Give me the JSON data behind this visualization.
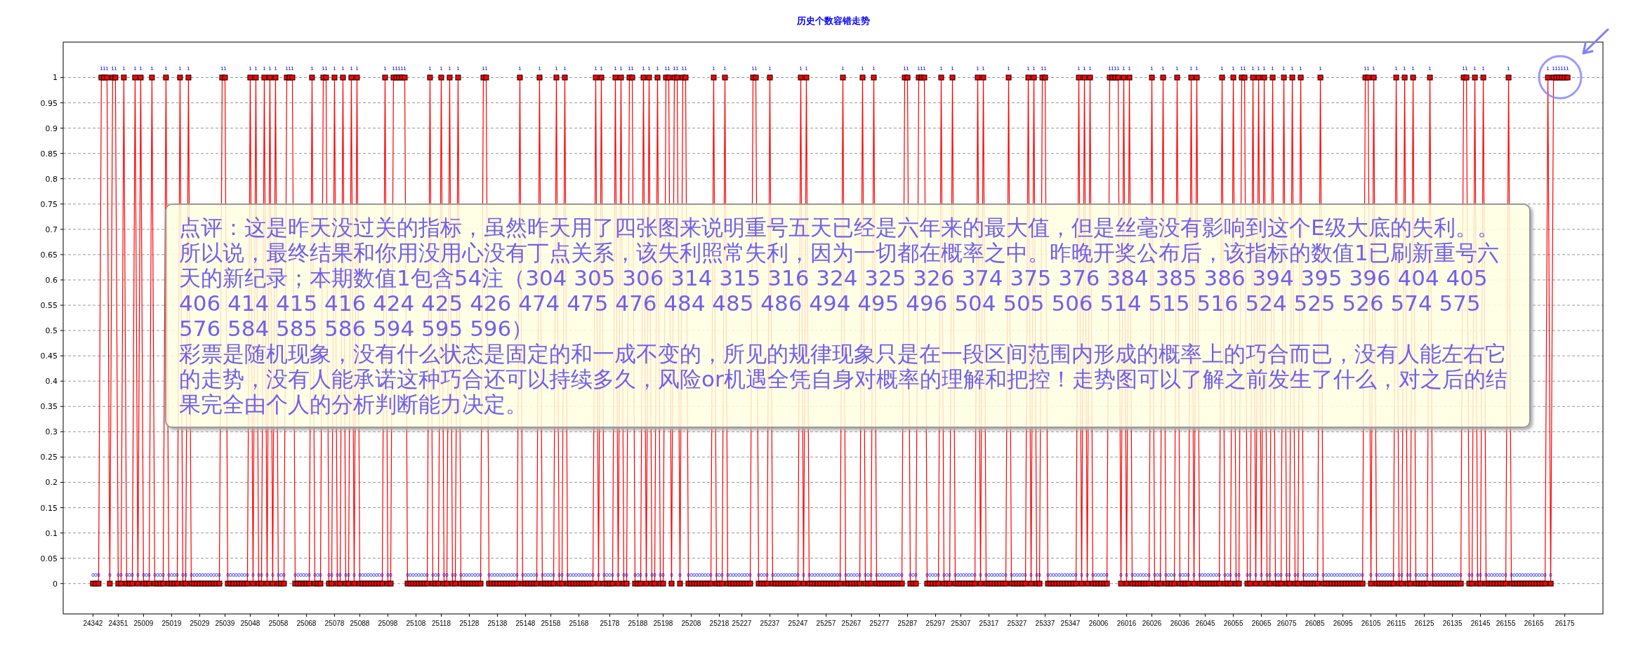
{
  "chart_data": {
    "type": "line",
    "title": "历史个数容错走势",
    "categories": [
      "24342",
      null,
      null,
      null,
      null,
      null,
      null,
      null,
      null,
      "24351",
      null,
      null,
      null,
      null,
      null,
      null,
      null,
      null,
      "25009",
      null,
      null,
      null,
      null,
      null,
      null,
      null,
      null,
      null,
      "25019",
      null,
      null,
      null,
      null,
      null,
      null,
      null,
      null,
      null,
      "25029",
      null,
      null,
      null,
      null,
      null,
      null,
      null,
      null,
      "25039",
      null,
      null,
      null,
      null,
      null,
      null,
      null,
      null,
      "25048",
      null,
      null,
      null,
      null,
      null,
      null,
      null,
      null,
      null,
      "25058",
      null,
      null,
      null,
      null,
      null,
      null,
      null,
      null,
      null,
      "25068",
      null,
      null,
      null,
      null,
      null,
      null,
      null,
      null,
      null,
      "25078",
      null,
      null,
      null,
      null,
      null,
      null,
      null,
      null,
      "25088",
      null,
      null,
      null,
      null,
      null,
      null,
      null,
      null,
      null,
      "25098",
      null,
      null,
      null,
      null,
      null,
      null,
      null,
      null,
      null,
      "25108",
      null,
      null,
      null,
      null,
      null,
      null,
      null,
      null,
      "25118",
      null,
      null,
      null,
      null,
      null,
      null,
      null,
      null,
      null,
      "25128",
      null,
      null,
      null,
      null,
      null,
      null,
      null,
      null,
      null,
      "25138",
      null,
      null,
      null,
      null,
      null,
      null,
      null,
      null,
      null,
      "25148",
      null,
      null,
      null,
      null,
      null,
      null,
      null,
      null,
      "25158",
      null,
      null,
      null,
      null,
      null,
      null,
      null,
      null,
      null,
      "25168",
      null,
      null,
      null,
      null,
      null,
      null,
      null,
      null,
      null,
      null,
      "25178",
      null,
      null,
      null,
      null,
      null,
      null,
      null,
      null,
      null,
      "25188",
      null,
      null,
      null,
      null,
      null,
      null,
      null,
      null,
      "25198",
      null,
      null,
      null,
      null,
      null,
      null,
      null,
      null,
      null,
      "25208",
      null,
      null,
      null,
      null,
      null,
      null,
      null,
      null,
      null,
      "25218",
      null,
      null,
      null,
      null,
      null,
      null,
      null,
      "25227",
      null,
      null,
      null,
      null,
      null,
      null,
      null,
      null,
      null,
      "25237",
      null,
      null,
      null,
      null,
      null,
      null,
      null,
      null,
      null,
      "25247",
      null,
      null,
      null,
      null,
      null,
      null,
      null,
      null,
      null,
      "25257",
      null,
      null,
      null,
      null,
      null,
      null,
      null,
      null,
      "25267",
      null,
      null,
      null,
      null,
      null,
      null,
      null,
      null,
      null,
      "25277",
      null,
      null,
      null,
      null,
      null,
      null,
      null,
      null,
      null,
      "25287",
      null,
      null,
      null,
      null,
      null,
      null,
      null,
      null,
      null,
      "25297",
      null,
      null,
      null,
      null,
      null,
      null,
      null,
      null,
      "25307",
      null,
      null,
      null,
      null,
      null,
      null,
      null,
      null,
      null,
      "25317",
      null,
      null,
      null,
      null,
      null,
      null,
      null,
      null,
      null,
      "25327",
      null,
      null,
      null,
      null,
      null,
      null,
      null,
      null,
      null,
      "25337",
      null,
      null,
      null,
      null,
      null,
      null,
      null,
      null,
      "25347",
      null,
      null,
      null,
      null,
      null,
      null,
      null,
      null,
      null,
      "26006",
      null,
      null,
      null,
      null,
      null,
      null,
      null,
      null,
      null,
      "26016",
      null,
      null,
      null,
      null,
      null,
      null,
      null,
      null,
      "26026",
      null,
      null,
      null,
      null,
      null,
      null,
      null,
      null,
      null,
      "26036",
      null,
      null,
      null,
      null,
      null,
      null,
      null,
      null,
      "26045",
      null,
      null,
      null,
      null,
      null,
      null,
      null,
      null,
      null,
      "26055",
      null,
      null,
      null,
      null,
      null,
      null,
      null,
      null,
      null,
      "26065",
      null,
      null,
      null,
      null,
      null,
      null,
      null,
      null,
      "26075",
      null,
      null,
      null,
      null,
      null,
      null,
      null,
      null,
      null,
      "26085",
      null,
      null,
      null,
      null,
      null,
      null,
      null,
      null,
      null,
      "26095",
      null,
      null,
      null,
      null,
      null,
      null,
      null,
      null,
      null,
      "26105",
      null,
      null,
      null,
      null,
      null,
      null,
      null,
      null,
      "26115",
      null,
      null,
      null,
      null,
      null,
      null,
      null,
      null,
      null,
      "26125",
      null,
      null,
      null,
      null,
      null,
      null,
      null,
      null,
      null,
      "26135",
      null,
      null,
      null,
      null,
      null,
      null,
      null,
      null,
      null,
      "26145",
      null,
      null,
      null,
      null,
      null,
      null,
      null,
      null,
      "26155",
      null,
      null,
      null,
      null,
      null,
      null,
      null,
      null,
      null,
      "26165",
      null,
      null,
      null,
      null,
      null,
      null,
      null,
      null,
      null,
      null,
      "26175",
      null
    ],
    "series": [
      {
        "color": "#ff0000",
        "values": [
          0,
          0,
          0,
          1,
          1,
          1,
          0,
          1,
          1,
          0,
          0,
          1,
          0,
          0,
          0,
          1,
          0,
          1,
          0,
          0,
          0,
          1,
          0,
          0,
          0,
          0,
          1,
          0,
          0,
          0,
          0,
          1,
          0,
          0,
          1,
          0,
          0,
          0,
          0,
          0,
          0,
          0,
          0,
          0,
          0,
          0,
          1,
          1,
          0,
          0,
          0,
          0,
          0,
          0,
          0,
          0,
          1,
          0,
          1,
          0,
          0,
          1,
          0,
          1,
          0,
          1,
          0,
          0,
          0,
          1,
          1,
          1,
          0,
          0,
          0,
          0,
          0,
          0,
          1,
          0,
          0,
          0,
          1,
          1,
          0,
          0,
          1,
          0,
          0,
          1,
          0,
          0,
          1,
          0,
          1,
          0,
          0,
          0,
          0,
          0,
          0,
          0,
          0,
          0,
          1,
          0,
          0,
          1,
          1,
          1,
          1,
          1,
          0,
          0,
          0,
          0,
          0,
          0,
          0,
          0,
          1,
          0,
          0,
          0,
          1,
          0,
          0,
          1,
          0,
          0,
          1,
          0,
          0,
          0,
          0,
          0,
          0,
          0,
          0,
          1,
          1,
          0,
          0,
          0,
          0,
          0,
          0,
          0,
          0,
          0,
          0,
          0,
          1,
          0,
          0,
          0,
          0,
          0,
          0,
          1,
          0,
          0,
          0,
          0,
          0,
          1,
          0,
          0,
          1,
          0,
          0,
          0,
          0,
          0,
          0,
          0,
          0,
          0,
          0,
          1,
          0,
          1,
          0,
          0,
          0,
          0,
          1,
          0,
          1,
          0,
          0,
          1,
          1,
          0,
          0,
          0,
          1,
          0,
          1,
          0,
          0,
          1,
          0,
          0,
          1,
          1,
          0,
          1,
          1,
          0,
          1,
          1,
          0,
          0,
          0,
          0,
          0,
          0,
          0,
          0,
          0,
          1,
          0,
          0,
          0,
          1,
          0,
          0,
          0,
          0,
          0,
          0,
          0,
          0,
          0,
          1,
          1,
          0,
          0,
          0,
          0,
          1,
          0,
          0,
          0,
          0,
          0,
          0,
          0,
          0,
          0,
          0,
          1,
          0,
          1,
          0,
          0,
          0,
          0,
          0,
          0,
          0,
          0,
          0,
          0,
          0,
          0,
          1,
          0,
          0,
          0,
          0,
          0,
          0,
          1,
          0,
          0,
          0,
          1,
          0,
          0,
          0,
          0,
          0,
          0,
          0,
          0,
          0,
          0,
          1,
          1,
          0,
          0,
          0,
          1,
          1,
          1,
          0,
          0,
          0,
          0,
          0,
          1,
          0,
          0,
          0,
          1,
          0,
          0,
          0,
          0,
          0,
          0,
          0,
          0,
          1,
          0,
          1,
          0,
          0,
          0,
          0,
          0,
          0,
          0,
          0,
          1,
          0,
          0,
          0,
          0,
          0,
          0,
          1,
          0,
          1,
          0,
          0,
          1,
          1,
          0,
          0,
          0,
          0,
          0,
          0,
          0,
          0,
          0,
          0,
          0,
          1,
          0,
          1,
          0,
          1,
          0,
          0,
          0,
          0,
          0,
          0,
          1,
          1,
          1,
          1,
          0,
          1,
          0,
          1,
          0,
          0,
          0,
          0,
          0,
          0,
          0,
          1,
          0,
          0,
          0,
          1,
          0,
          0,
          0,
          0,
          1,
          0,
          0,
          0,
          0,
          1,
          0,
          1,
          0,
          0,
          0,
          0,
          0,
          0,
          0,
          0,
          1,
          0,
          0,
          0,
          1,
          0,
          0,
          1,
          1,
          0,
          0,
          1,
          0,
          1,
          0,
          1,
          0,
          0,
          1,
          0,
          0,
          0,
          1,
          0,
          0,
          1,
          0,
          0,
          1,
          0,
          0,
          0,
          0,
          0,
          0,
          1,
          0,
          0,
          0,
          0,
          0,
          0,
          0,
          0,
          0,
          0,
          0,
          0,
          0,
          0,
          0,
          1,
          1,
          0,
          1,
          0,
          0,
          0,
          0,
          0,
          0,
          0,
          1,
          0,
          0,
          1,
          0,
          0,
          1,
          0,
          0,
          0,
          0,
          0,
          1,
          0,
          0,
          0,
          0,
          0,
          0,
          0,
          0,
          0,
          0,
          0,
          1,
          1,
          0,
          0,
          1,
          0,
          0,
          1,
          0,
          0,
          0,
          0,
          0,
          0,
          0,
          0,
          1,
          0,
          0,
          0,
          0,
          0,
          0,
          0,
          0,
          0,
          0,
          0,
          0,
          0,
          1,
          0,
          1,
          1,
          1,
          1,
          1,
          1
        ]
      }
    ],
    "marker": "square",
    "ylim": [
      -0.06,
      1.07
    ],
    "yticks": [
      0,
      0.05,
      0.1,
      0.15,
      0.2,
      0.25,
      0.3,
      0.35,
      0.4,
      0.45,
      0.5,
      0.55,
      0.6,
      0.65,
      0.7,
      0.75,
      0.8,
      0.85,
      0.9,
      0.95,
      1
    ],
    "grid": "y",
    "data_labels": true,
    "annotations": [
      "点评：这是昨天没过关的指标，虽然昨天用了四张图来说明重号五天已经是六年来的最大值，但是丝毫没有影响到这个E级大底的失利。。所以说，最终结果和你用没用心没有丁点关系，该失利照常失利，因为一切都在概率之中。昨晚开奖公布后，该指标的数值1已刷新重号六天的新纪录；本期数值1包含54注（304 305 306 314 315 316 324 325 326 374 375 376 384 385 386 394 395 396 404 405 406 414 415 416 424 425 426 474 475 476 484 485 486 494 495 496 504 505 506 514 515 516 524 525 526 574 575 576 584 585 586 594 595 596）",
      "彩票是随机现象，没有什么状态是固定的和一成不变的，所见的规律现象只是在一段区间范围内形成的概率上的巧合而已，没有人能左右它的走势，没有人能承诺这种巧合还可以持续多久，风险or机遇全凭自身对概率的理解和把控！走势图可以了解之前发生了什么，对之后的结果完全由个人的分析判断能力决定。"
    ]
  }
}
